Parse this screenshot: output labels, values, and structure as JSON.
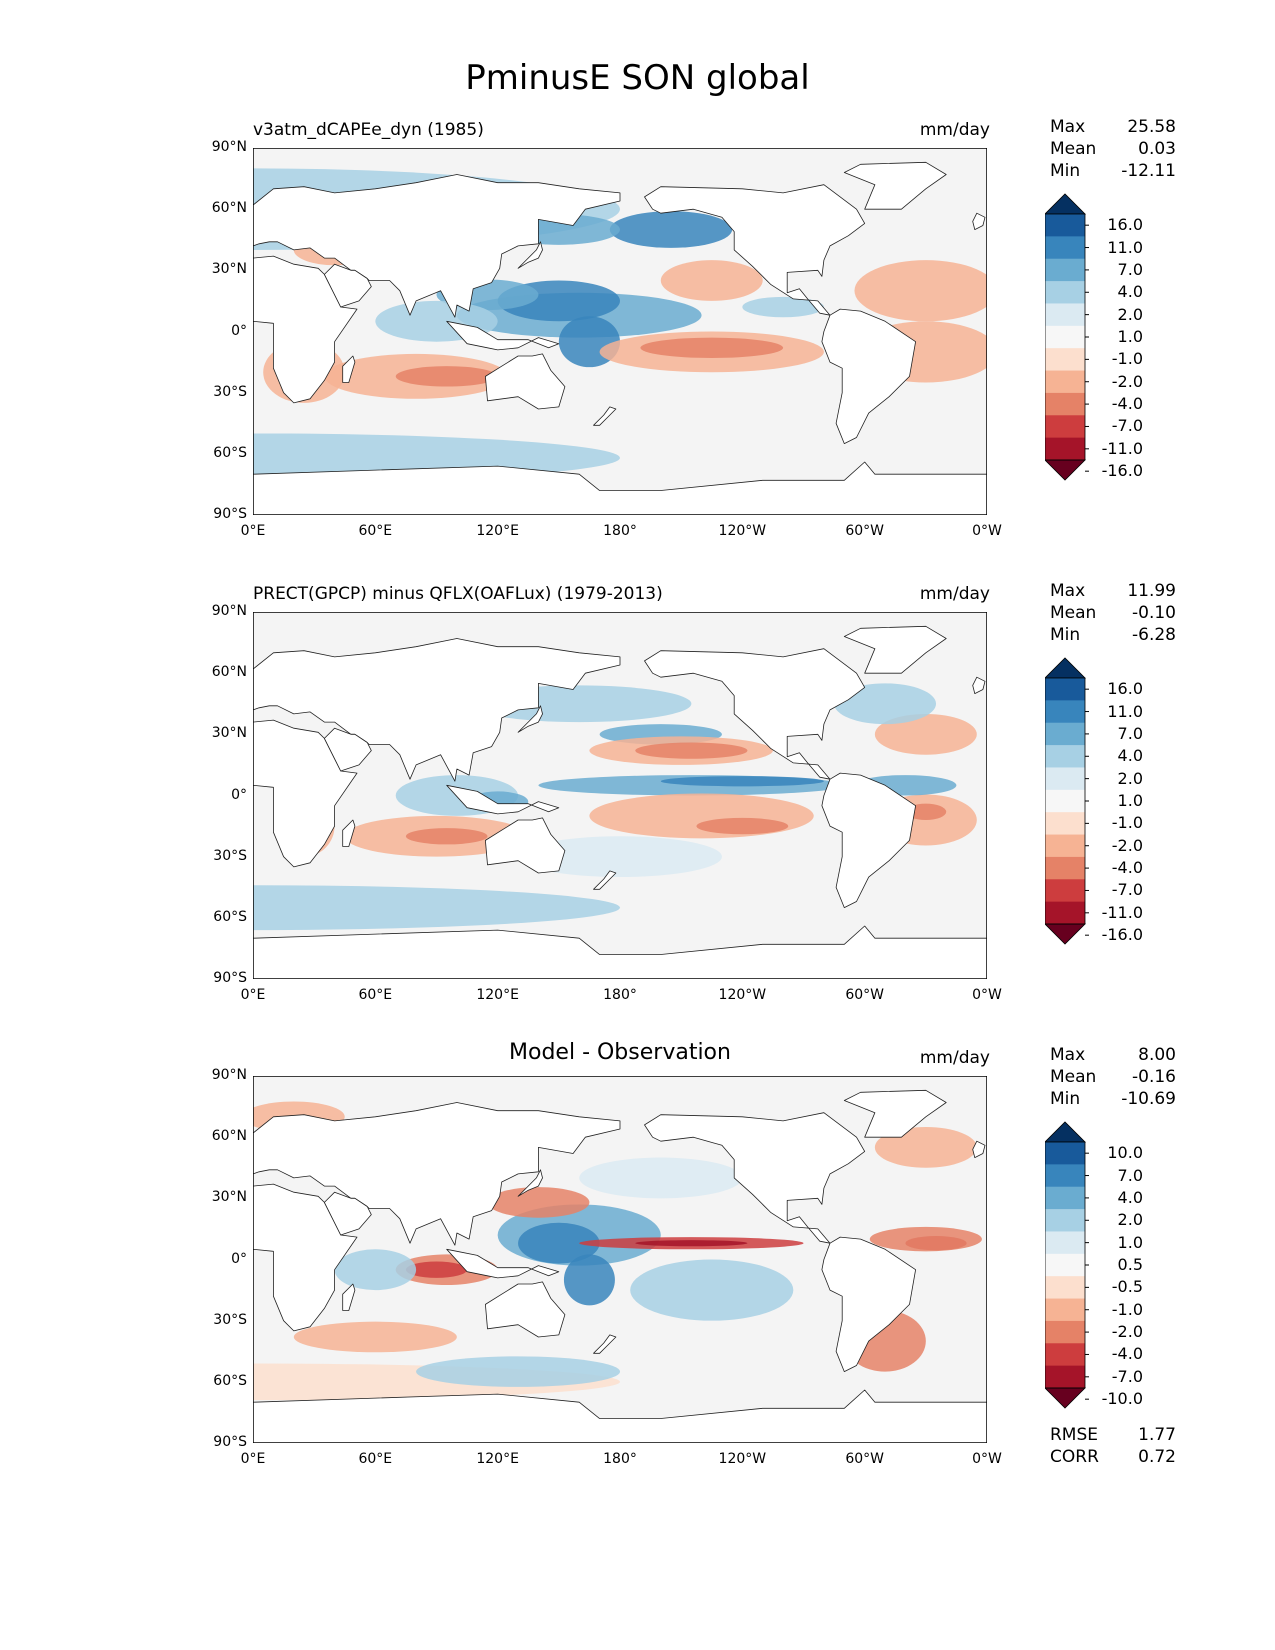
{
  "title": "PminusE SON global",
  "colors": {
    "cmap": [
      "#67001f",
      "#a51429",
      "#cd3d3e",
      "#e58267",
      "#f6b394",
      "#fcdfce",
      "#f7f7f7",
      "#dbeaf2",
      "#a7d0e4",
      "#6aacd0",
      "#3885bc",
      "#185a9b",
      "#053061"
    ],
    "land": "#ffffff",
    "ocean_neutral": "#f4f4f4"
  },
  "x_ticks": [
    "0°E",
    "60°E",
    "120°E",
    "180°",
    "120°W",
    "60°W",
    "0°W"
  ],
  "y_ticks": [
    "90°N",
    "60°N",
    "30°N",
    "0°",
    "30°S",
    "60°S",
    "90°S"
  ],
  "panels": [
    {
      "id": "model",
      "title": "v3atm_dCAPEe_dyn (1985)",
      "units": "mm/day",
      "stats": [
        {
          "label": "Max",
          "value": "25.58"
        },
        {
          "label": "Mean",
          "value": "0.03"
        },
        {
          "label": "Min",
          "value": "-12.11"
        }
      ],
      "levels": [
        "16.0",
        "11.0",
        "7.0",
        "4.0",
        "2.0",
        "1.0",
        "-1.0",
        "-2.0",
        "-4.0",
        "-7.0",
        "-11.0",
        "-16.0"
      ]
    },
    {
      "id": "obs",
      "title": "PRECT(GPCP) minus QFLX(OAFLux) (1979-2013)",
      "units": "mm/day",
      "stats": [
        {
          "label": "Max",
          "value": "11.99"
        },
        {
          "label": "Mean",
          "value": "-0.10"
        },
        {
          "label": "Min",
          "value": "-6.28"
        }
      ],
      "levels": [
        "16.0",
        "11.0",
        "7.0",
        "4.0",
        "2.0",
        "1.0",
        "-1.0",
        "-2.0",
        "-4.0",
        "-7.0",
        "-11.0",
        "-16.0"
      ]
    },
    {
      "id": "diff",
      "title": "Model - Observation",
      "units": "mm/day",
      "stats": [
        {
          "label": "Max",
          "value": "8.00"
        },
        {
          "label": "Mean",
          "value": "-0.16"
        },
        {
          "label": "Min",
          "value": "-10.69"
        }
      ],
      "levels": [
        "10.0",
        "7.0",
        "4.0",
        "2.0",
        "1.0",
        "0.5",
        "-0.5",
        "-1.0",
        "-2.0",
        "-4.0",
        "-7.0",
        "-10.0"
      ],
      "metrics": [
        {
          "label": "RMSE",
          "value": "1.77"
        },
        {
          "label": "CORR",
          "value": "0.72"
        }
      ]
    }
  ]
}
